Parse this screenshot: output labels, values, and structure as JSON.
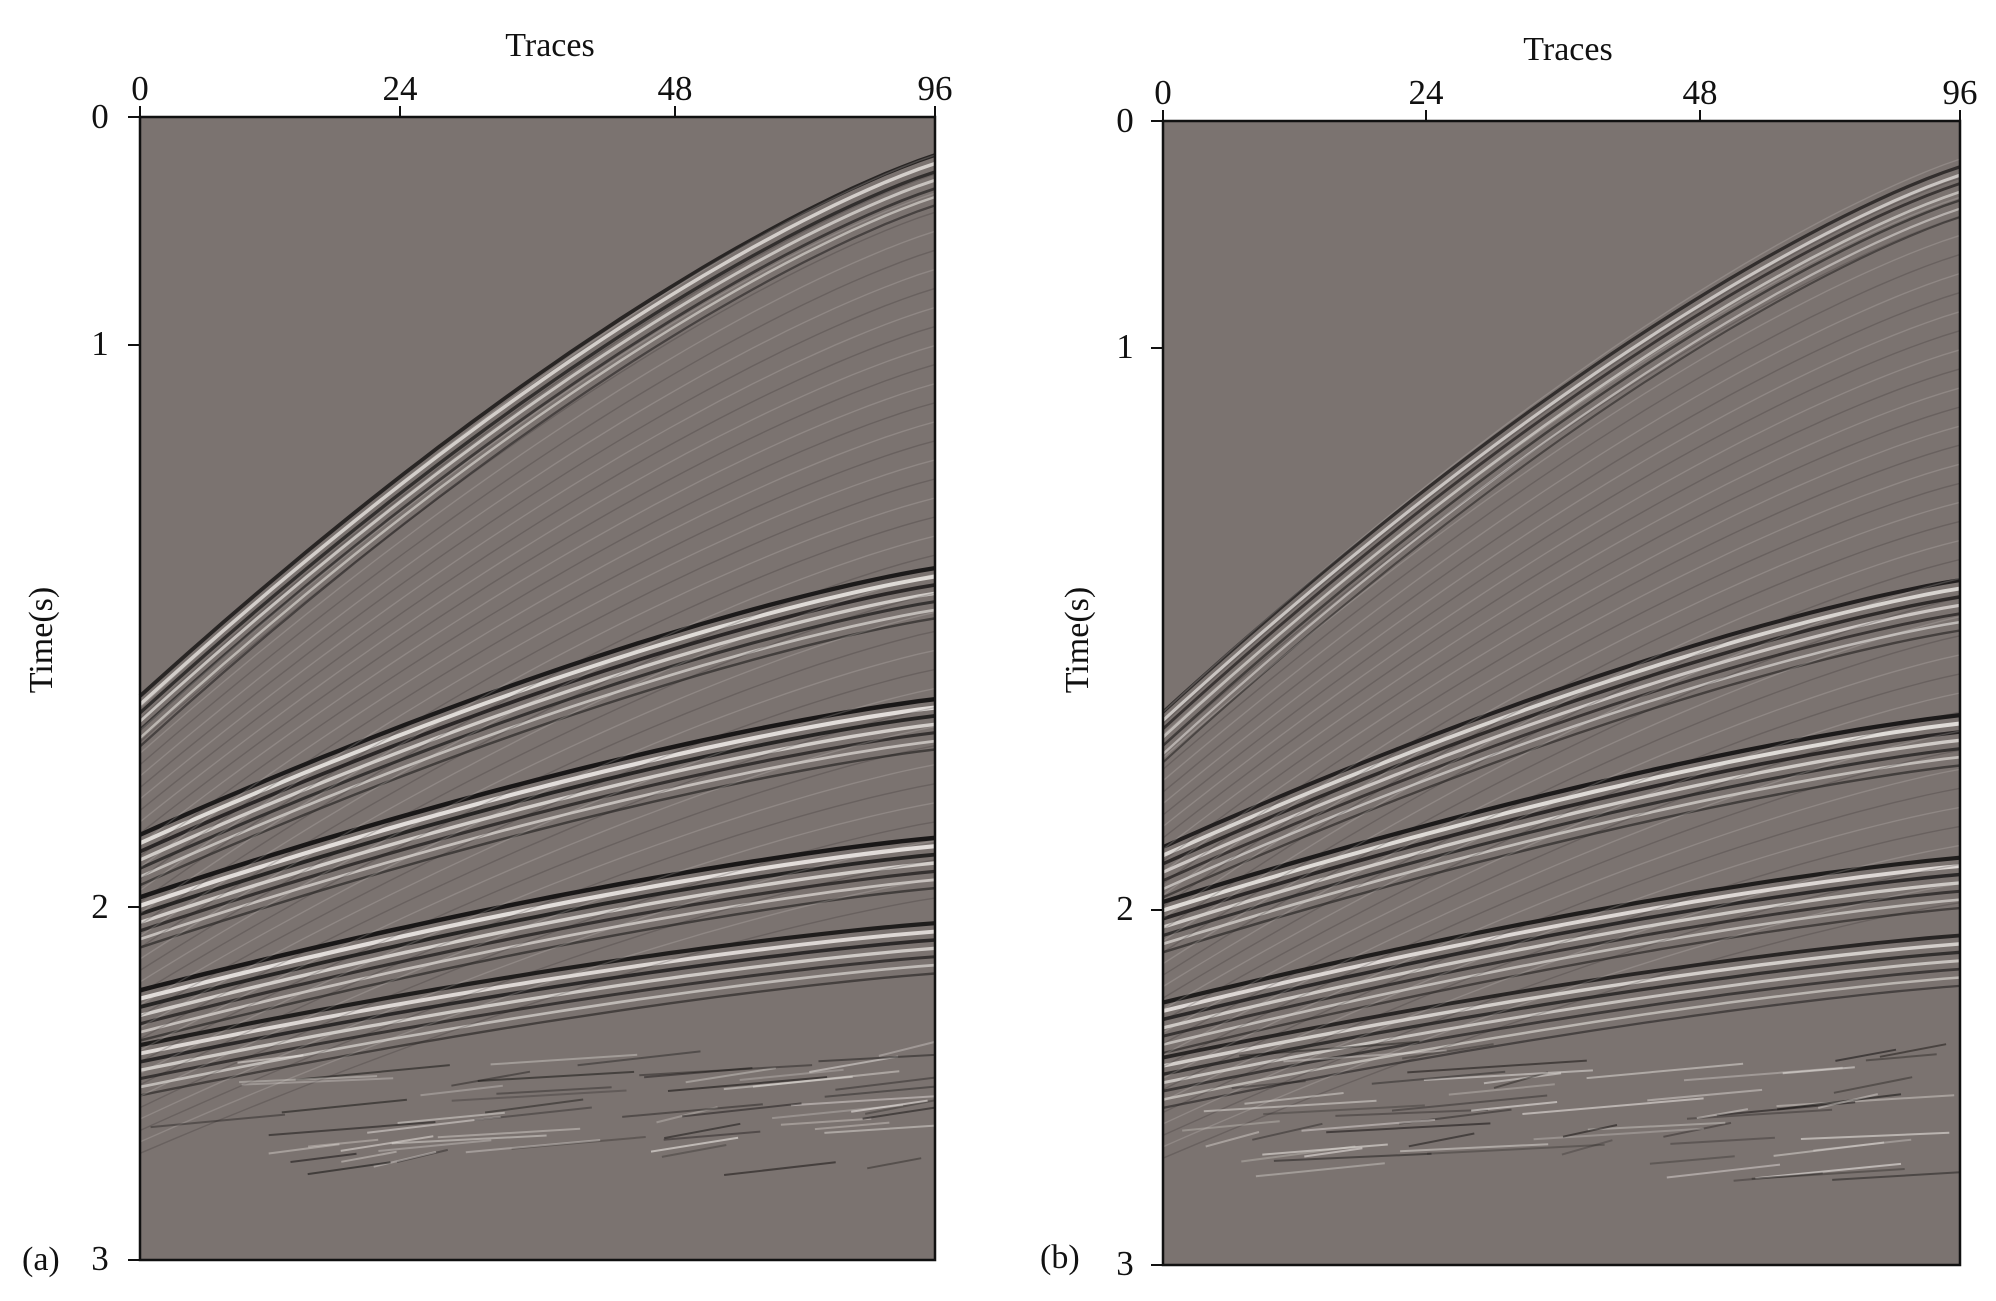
{
  "chart_data": [
    {
      "type": "heatmap",
      "panel_label": "(a)",
      "xlabel": "Traces",
      "ylabel": "Time(s)",
      "xlim": [
        0,
        96
      ],
      "ylim": [
        3,
        0
      ],
      "x_ticks": [
        "0",
        "24",
        "48",
        "96"
      ],
      "y_ticks": [
        "0",
        "1",
        "2",
        "3"
      ],
      "background_color": "#7b7370",
      "events": [
        {
          "t0": 1.52,
          "t_far": 0.1,
          "strength": 0.75
        },
        {
          "t0": 1.88,
          "t_far": 1.18,
          "strength": 0.95
        },
        {
          "t0": 2.04,
          "t_far": 1.52,
          "strength": 1.0
        },
        {
          "t0": 2.28,
          "t_far": 1.88,
          "strength": 1.0
        },
        {
          "t0": 2.42,
          "t_far": 2.1,
          "strength": 0.9
        }
      ],
      "noise_end_time": 2.78
    },
    {
      "type": "heatmap",
      "panel_label": "(b)",
      "xlabel": "Traces",
      "ylabel": "Time(s)",
      "xlim": [
        0,
        96
      ],
      "ylim": [
        3,
        0
      ],
      "x_ticks": [
        "0",
        "24",
        "48",
        "96"
      ],
      "y_ticks": [
        "0",
        "1",
        "2",
        "3"
      ],
      "background_color": "#7b7370",
      "events": [
        {
          "t0": 1.55,
          "t_far": 0.12,
          "strength": 0.6
        },
        {
          "t0": 1.9,
          "t_far": 1.2,
          "strength": 0.85
        },
        {
          "t0": 2.04,
          "t_far": 1.55,
          "strength": 0.95
        },
        {
          "t0": 2.3,
          "t_far": 1.92,
          "strength": 0.9
        },
        {
          "t0": 2.44,
          "t_far": 2.12,
          "strength": 0.75
        }
      ],
      "noise_end_time": 2.78
    }
  ]
}
